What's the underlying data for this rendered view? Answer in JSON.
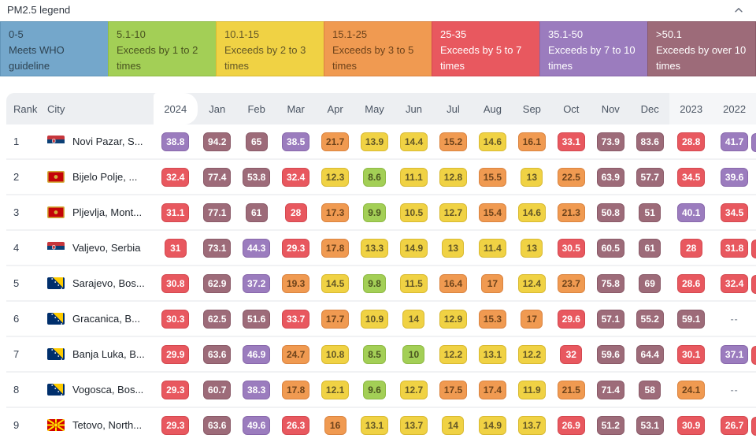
{
  "legend": {
    "title": "PM2.5 legend",
    "collapse_icon": "chevron-up-icon",
    "items": [
      {
        "range": "0-5",
        "desc": "Meets WHO guideline",
        "color": "blue"
      },
      {
        "range": "5.1-10",
        "desc": "Exceeds by 1 to 2 times",
        "color": "green"
      },
      {
        "range": "10.1-15",
        "desc": "Exceeds by 2 to 3 times",
        "color": "yellow"
      },
      {
        "range": "15.1-25",
        "desc": "Exceeds by 3 to 5 times",
        "color": "orange"
      },
      {
        "range": "25-35",
        "desc": "Exceeds by 5 to 7 times",
        "color": "red"
      },
      {
        "range": "35.1-50",
        "desc": "Exceeds by 7 to 10 times",
        "color": "purple"
      },
      {
        "range": ">50.1",
        "desc": "Exceeds by over 10 times",
        "color": "maroon"
      }
    ]
  },
  "palette": {
    "blue": {
      "bg": "#74a7cb",
      "border": "#6194b8",
      "fg": "#2e4352"
    },
    "green": {
      "bg": "#a3cf56",
      "border": "#8fba45",
      "fg": "#4a5420"
    },
    "yellow": {
      "bg": "#f0d244",
      "border": "#d9ba31",
      "fg": "#635727"
    },
    "orange": {
      "bg": "#f09a51",
      "border": "#db8440",
      "fg": "#6e431b"
    },
    "red": {
      "bg": "#e8585f",
      "border": "#d4484f",
      "fg": "#ffffff"
    },
    "purple": {
      "bg": "#9b7cbe",
      "border": "#8867ab",
      "fg": "#ffffff"
    },
    "maroon": {
      "bg": "#9d6b79",
      "border": "#8a5a68",
      "fg": "#ffffff"
    }
  },
  "thresholds": [
    {
      "max": 5,
      "color": "blue"
    },
    {
      "max": 10,
      "color": "green"
    },
    {
      "max": 15,
      "color": "yellow"
    },
    {
      "max": 25,
      "color": "orange"
    },
    {
      "max": 35,
      "color": "red"
    },
    {
      "max": 50,
      "color": "purple"
    },
    {
      "max": null,
      "color": "maroon"
    }
  ],
  "table": {
    "headers": {
      "rank": "Rank",
      "city": "City",
      "current_year": "2024",
      "months": [
        "Jan",
        "Feb",
        "Mar",
        "Apr",
        "May",
        "Jun",
        "Jul",
        "Aug",
        "Sep",
        "Oct",
        "Nov",
        "Dec"
      ],
      "prev_years": [
        "2023",
        "2022"
      ]
    },
    "empty_value": "--",
    "rows": [
      {
        "rank": "1",
        "city": "Novi Pazar, S...",
        "country": "serbia",
        "values": [
          "38.8",
          "94.2",
          "65",
          "38.5",
          "21.7",
          "13.9",
          "14.4",
          "15.2",
          "14.6",
          "16.1",
          "33.1",
          "73.9",
          "83.6",
          "28.8",
          "41.7"
        ],
        "next_peek": "purple"
      },
      {
        "rank": "2",
        "city": "Bijelo Polje, ...",
        "country": "montenegro",
        "values": [
          "32.4",
          "77.4",
          "53.8",
          "32.4",
          "12.3",
          "8.6",
          "11.1",
          "12.8",
          "15.5",
          "13",
          "22.5",
          "63.9",
          "57.7",
          "34.5",
          "39.6"
        ],
        "next_peek": null
      },
      {
        "rank": "3",
        "city": "Pljevlja, Mont...",
        "country": "montenegro",
        "values": [
          "31.1",
          "77.1",
          "61",
          "28",
          "17.3",
          "9.9",
          "10.5",
          "12.7",
          "15.4",
          "14.6",
          "21.3",
          "50.8",
          "51",
          "40.1",
          "34.5"
        ],
        "next_peek": null
      },
      {
        "rank": "4",
        "city": "Valjevo, Serbia",
        "country": "serbia",
        "values": [
          "31",
          "73.1",
          "44.3",
          "29.3",
          "17.8",
          "13.3",
          "14.9",
          "13",
          "11.4",
          "13",
          "30.5",
          "60.5",
          "61",
          "28",
          "31.8"
        ],
        "next_peek": "red"
      },
      {
        "rank": "5",
        "city": "Sarajevo, Bos...",
        "country": "bosnia",
        "values": [
          "30.8",
          "62.9",
          "37.2",
          "19.3",
          "14.5",
          "9.8",
          "11.5",
          "16.4",
          "17",
          "12.4",
          "23.7",
          "75.8",
          "69",
          "28.6",
          "32.4"
        ],
        "next_peek": "red"
      },
      {
        "rank": "6",
        "city": "Gracanica, B...",
        "country": "bosnia",
        "values": [
          "30.3",
          "62.5",
          "51.6",
          "33.7",
          "17.7",
          "10.9",
          "14",
          "12.9",
          "15.3",
          "17",
          "29.6",
          "57.1",
          "55.2",
          "59.1",
          "--"
        ],
        "next_peek": null
      },
      {
        "rank": "7",
        "city": "Banja Luka, B...",
        "country": "bosnia",
        "values": [
          "29.9",
          "63.6",
          "46.9",
          "24.7",
          "10.8",
          "8.5",
          "10",
          "12.2",
          "13.1",
          "12.2",
          "32",
          "59.6",
          "64.4",
          "30.1",
          "37.1"
        ],
        "next_peek": "red"
      },
      {
        "rank": "8",
        "city": "Vogosca, Bos...",
        "country": "bosnia",
        "values": [
          "29.3",
          "60.7",
          "38.3",
          "17.8",
          "12.1",
          "9.6",
          "12.7",
          "17.5",
          "17.4",
          "11.9",
          "21.5",
          "71.4",
          "58",
          "24.1",
          "--"
        ],
        "next_peek": null
      },
      {
        "rank": "9",
        "city": "Tetovo, North...",
        "country": "north-macedonia",
        "values": [
          "29.3",
          "63.6",
          "49.6",
          "26.3",
          "16",
          "13.1",
          "13.7",
          "14",
          "14.9",
          "13.7",
          "26.9",
          "51.2",
          "53.1",
          "30.9",
          "26.7"
        ],
        "next_peek": "red"
      }
    ]
  }
}
